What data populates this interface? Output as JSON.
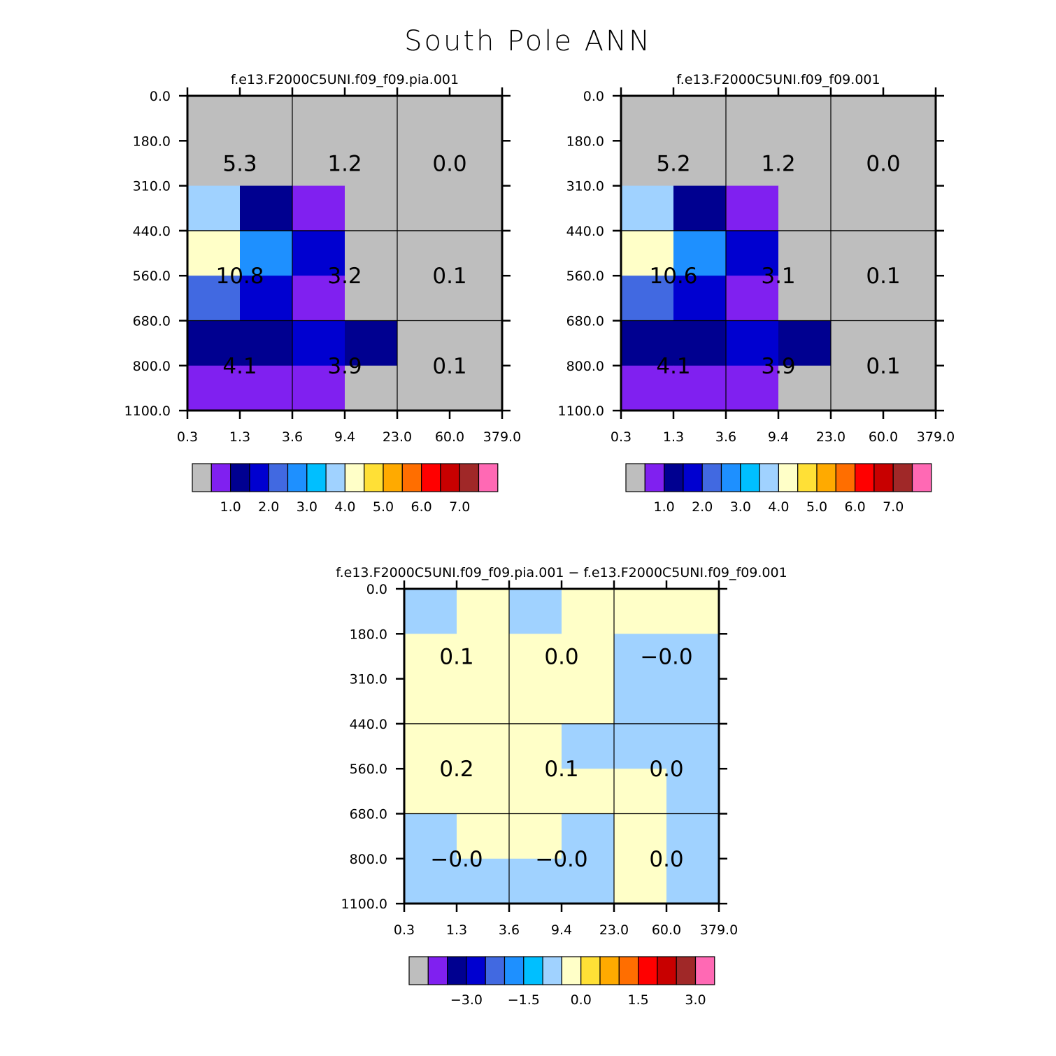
{
  "title": "South Pole ANN",
  "palette": [
    "#bebebe",
    "#8020f0",
    "#000090",
    "#0000d0",
    "#4169e1",
    "#1e90ff",
    "#00bfff",
    "#a0d2ff",
    "#ffffc8",
    "#ffe036",
    "#ffaa00",
    "#ff6e00",
    "#ff0000",
    "#c80000",
    "#a02828",
    "#ff69b4"
  ],
  "y_ticks": [
    "0.0",
    "180.0",
    "310.0",
    "440.0",
    "560.0",
    "680.0",
    "800.0",
    "1100.0"
  ],
  "x_ticks": [
    "0.3",
    "1.3",
    "3.6",
    "9.4",
    "23.0",
    "60.0",
    "379.0"
  ],
  "chart_data": [
    {
      "type": "heatmap",
      "title": "f.e13.F2000C5UNI.f09_f09.pia.001",
      "x_edges": [
        0.3,
        1.3,
        3.6,
        9.4,
        23.0,
        60.0,
        379.0
      ],
      "y_edges": [
        0.0,
        180.0,
        310.0,
        440.0,
        560.0,
        680.0,
        800.0,
        1100.0
      ],
      "x_ticks": [
        "0.3",
        "1.3",
        "3.6",
        "9.4",
        "23.0",
        "60.0",
        "379.0"
      ],
      "y_ticks": [
        "0.0",
        "180.0",
        "310.0",
        "440.0",
        "560.0",
        "680.0",
        "800.0",
        "1100.0"
      ],
      "cell_color_index": [
        [
          0,
          0,
          0,
          0,
          0,
          0
        ],
        [
          0,
          0,
          0,
          0,
          0,
          0
        ],
        [
          7,
          2,
          1,
          0,
          0,
          0
        ],
        [
          8,
          5,
          3,
          0,
          0,
          0
        ],
        [
          4,
          3,
          1,
          0,
          0,
          0
        ],
        [
          2,
          2,
          3,
          2,
          0,
          0
        ],
        [
          1,
          1,
          1,
          0,
          0,
          0
        ]
      ],
      "summary_values": [
        [
          "5.3",
          "1.2",
          "0.0"
        ],
        [
          "10.8",
          "3.2",
          "0.1"
        ],
        [
          "4.1",
          "3.9",
          "0.1"
        ]
      ],
      "colorbar": {
        "labels": [
          "1.0",
          "2.0",
          "3.0",
          "4.0",
          "5.0",
          "6.0",
          "7.0"
        ],
        "label_after_box": [
          1,
          3,
          5,
          7,
          9,
          11,
          13
        ]
      }
    },
    {
      "type": "heatmap",
      "title": "f.e13.F2000C5UNI.f09_f09.001",
      "x_edges": [
        0.3,
        1.3,
        3.6,
        9.4,
        23.0,
        60.0,
        379.0
      ],
      "y_edges": [
        0.0,
        180.0,
        310.0,
        440.0,
        560.0,
        680.0,
        800.0,
        1100.0
      ],
      "x_ticks": [
        "0.3",
        "1.3",
        "3.6",
        "9.4",
        "23.0",
        "60.0",
        "379.0"
      ],
      "y_ticks": [
        "0.0",
        "180.0",
        "310.0",
        "440.0",
        "560.0",
        "680.0",
        "800.0",
        "1100.0"
      ],
      "cell_color_index": [
        [
          0,
          0,
          0,
          0,
          0,
          0
        ],
        [
          0,
          0,
          0,
          0,
          0,
          0
        ],
        [
          7,
          2,
          1,
          0,
          0,
          0
        ],
        [
          8,
          5,
          3,
          0,
          0,
          0
        ],
        [
          4,
          3,
          1,
          0,
          0,
          0
        ],
        [
          2,
          2,
          3,
          2,
          0,
          0
        ],
        [
          1,
          1,
          1,
          0,
          0,
          0
        ]
      ],
      "summary_values": [
        [
          "5.2",
          "1.2",
          "0.0"
        ],
        [
          "10.6",
          "3.1",
          "0.1"
        ],
        [
          "4.1",
          "3.9",
          "0.1"
        ]
      ],
      "colorbar": {
        "labels": [
          "1.0",
          "2.0",
          "3.0",
          "4.0",
          "5.0",
          "6.0",
          "7.0"
        ],
        "label_after_box": [
          1,
          3,
          5,
          7,
          9,
          11,
          13
        ]
      }
    },
    {
      "type": "heatmap",
      "title": "f.e13.F2000C5UNI.f09_f09.pia.001 − f.e13.F2000C5UNI.f09_f09.001",
      "x_edges": [
        0.3,
        1.3,
        3.6,
        9.4,
        23.0,
        60.0,
        379.0
      ],
      "y_edges": [
        0.0,
        180.0,
        310.0,
        440.0,
        560.0,
        680.0,
        800.0,
        1100.0
      ],
      "x_ticks": [
        "0.3",
        "1.3",
        "3.6",
        "9.4",
        "23.0",
        "60.0",
        "379.0"
      ],
      "y_ticks": [
        "0.0",
        "180.0",
        "310.0",
        "440.0",
        "560.0",
        "680.0",
        "800.0",
        "1100.0"
      ],
      "cell_color_index": [
        [
          7,
          8,
          7,
          8,
          8,
          8
        ],
        [
          8,
          8,
          8,
          8,
          7,
          7
        ],
        [
          8,
          8,
          8,
          8,
          7,
          7
        ],
        [
          8,
          8,
          8,
          7,
          7,
          7
        ],
        [
          8,
          8,
          8,
          8,
          8,
          7
        ],
        [
          7,
          8,
          8,
          7,
          8,
          7
        ],
        [
          7,
          7,
          7,
          7,
          8,
          7
        ]
      ],
      "summary_values": [
        [
          "0.1",
          "0.0",
          "−0.0"
        ],
        [
          "0.2",
          "0.1",
          "0.0"
        ],
        [
          "−0.0",
          "−0.0",
          "0.0"
        ]
      ],
      "colorbar": {
        "labels": [
          "−3.0",
          "−1.5",
          "0.0",
          "1.5",
          "3.0"
        ],
        "label_after_box": [
          2,
          5,
          8,
          11,
          14
        ]
      }
    }
  ]
}
